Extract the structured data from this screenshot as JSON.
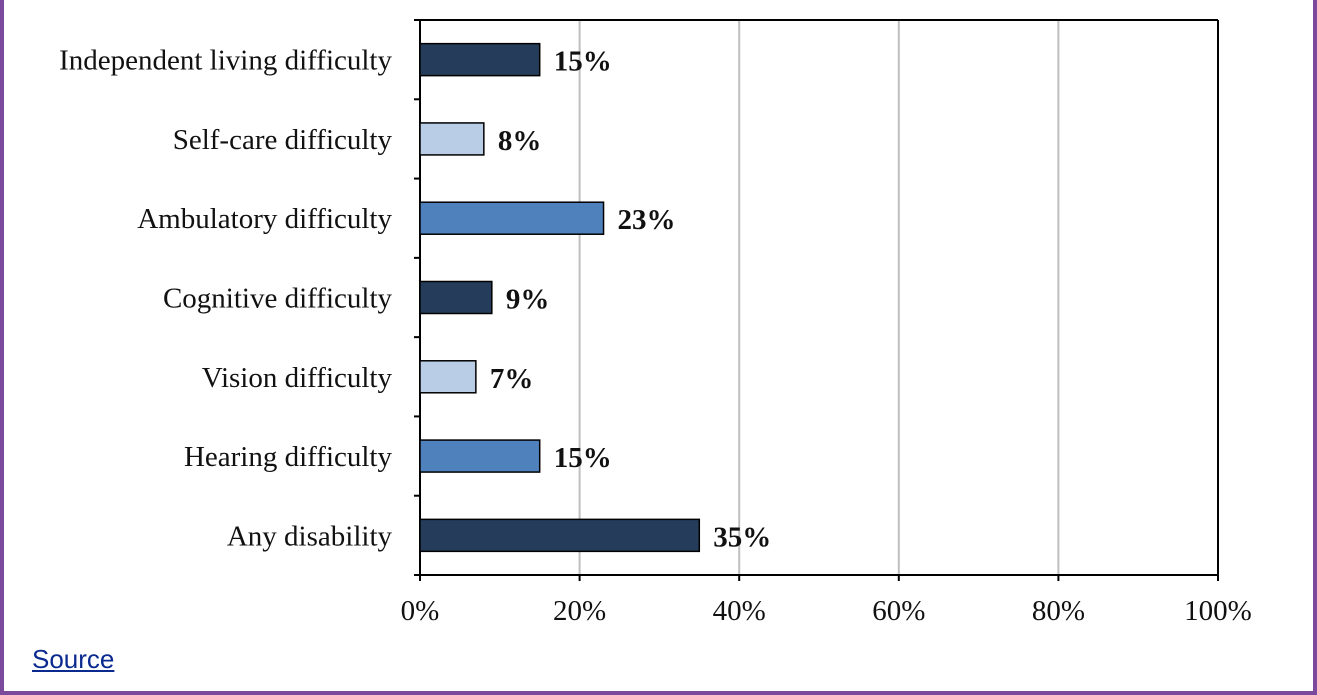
{
  "chart_data": {
    "type": "bar",
    "orientation": "horizontal",
    "categories": [
      "Independent living difficulty",
      "Self-care difficulty",
      "Ambulatory difficulty",
      "Cognitive difficulty",
      "Vision difficulty",
      "Hearing difficulty",
      "Any disability"
    ],
    "values": [
      15,
      8,
      23,
      9,
      7,
      15,
      35
    ],
    "data_labels": [
      "15%",
      "8%",
      "23%",
      "9%",
      "7%",
      "15%",
      "35%"
    ],
    "bar_colors": [
      "#253d5b",
      "#b9cde6",
      "#4f81bd",
      "#253d5b",
      "#b9cde6",
      "#4f81bd",
      "#253d5b"
    ],
    "xlim": [
      0,
      100
    ],
    "x_ticks": [
      0,
      20,
      40,
      60,
      80,
      100
    ],
    "x_tick_labels": [
      "0%",
      "20%",
      "40%",
      "60%",
      "80%",
      "100%"
    ],
    "grid": "vertical",
    "title": "",
    "xlabel": "",
    "ylabel": ""
  },
  "source": {
    "label": "Source"
  },
  "colors": {
    "frame_border": "#7b4a9c",
    "grid": "#bfbfbf",
    "axis": "#000000",
    "bar_outline": "#000000",
    "link": "#0b2a8f"
  }
}
